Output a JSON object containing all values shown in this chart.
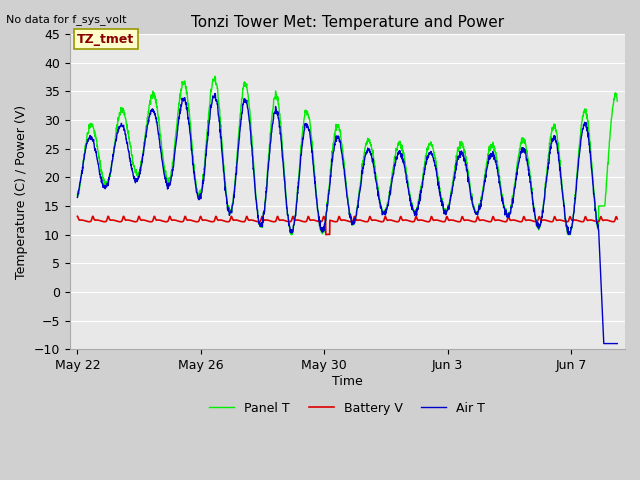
{
  "title": "Tonzi Tower Met: Temperature and Power",
  "ylabel": "Temperature (C) / Power (V)",
  "xlabel": "Time",
  "no_data_text": "No data for f_sys_volt",
  "label_box_text": "TZ_tmet",
  "ylim": [
    -10,
    45
  ],
  "yticks": [
    -10,
    -5,
    0,
    5,
    10,
    15,
    20,
    25,
    30,
    35,
    40,
    45
  ],
  "xtick_labels": [
    "May 22",
    "May 26",
    "May 30",
    "Jun 3",
    "Jun 7"
  ],
  "bg_color": "#d0d0d0",
  "plot_bg_color": "#e8e8e8",
  "grid_color": "#ffffff",
  "panel_color": "#00ee00",
  "battery_color": "#dd0000",
  "air_color": "#0000cc",
  "legend_labels": [
    "Panel T",
    "Battery V",
    "Air T"
  ],
  "title_fontsize": 11,
  "axis_fontsize": 9,
  "tick_fontsize": 9
}
